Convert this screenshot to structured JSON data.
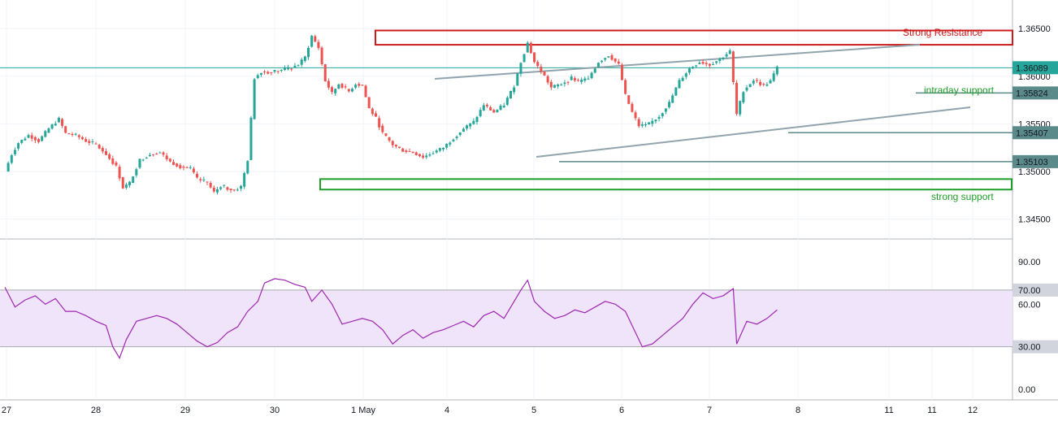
{
  "chart_data": [
    {
      "type": "candlestick",
      "y_ticks": [
        "1.36500",
        "1.36000",
        "1.35500",
        "1.35000",
        "1.34500"
      ],
      "ylim": [
        1.343,
        1.368
      ],
      "last_price": "1.36089",
      "level_labels": [
        "1.35824",
        "1.35407",
        "1.35103"
      ],
      "annotations": {
        "resistance": "Strong Resistance",
        "intraday": "intraday support",
        "support": "strong support"
      },
      "zones": {
        "resistance": [
          1.3633,
          1.3648
        ],
        "support": [
          1.3481,
          1.3492
        ]
      },
      "path_points": [
        [
          0,
          1.35
        ],
        [
          2,
          1.3518
        ],
        [
          4,
          1.353
        ],
        [
          7,
          1.3538
        ],
        [
          10,
          1.3532
        ],
        [
          13,
          1.3545
        ],
        [
          16,
          1.3555
        ],
        [
          18,
          1.354
        ],
        [
          21,
          1.3538
        ],
        [
          24,
          1.3532
        ],
        [
          27,
          1.3528
        ],
        [
          30,
          1.3518
        ],
        [
          33,
          1.3505
        ],
        [
          35,
          1.3483
        ],
        [
          37,
          1.3488
        ],
        [
          40,
          1.3512
        ],
        [
          43,
          1.3518
        ],
        [
          46,
          1.352
        ],
        [
          49,
          1.351
        ],
        [
          52,
          1.3505
        ],
        [
          55,
          1.3503
        ],
        [
          57,
          1.3492
        ],
        [
          60,
          1.3488
        ],
        [
          62,
          1.3478
        ],
        [
          64,
          1.3485
        ],
        [
          66,
          1.3482
        ],
        [
          68,
          1.348
        ],
        [
          70,
          1.3484
        ],
        [
          72,
          1.3512
        ],
        [
          74,
          1.3598
        ],
        [
          76,
          1.3605
        ],
        [
          78,
          1.3604
        ],
        [
          81,
          1.3606
        ],
        [
          84,
          1.3608
        ],
        [
          87,
          1.3612
        ],
        [
          89,
          1.362
        ],
        [
          91,
          1.3642
        ],
        [
          93,
          1.363
        ],
        [
          95,
          1.3595
        ],
        [
          97,
          1.3582
        ],
        [
          99,
          1.3592
        ],
        [
          102,
          1.3584
        ],
        [
          104,
          1.3592
        ],
        [
          106,
          1.359
        ],
        [
          108,
          1.3566
        ],
        [
          110,
          1.3556
        ],
        [
          112,
          1.354
        ],
        [
          115,
          1.3528
        ],
        [
          118,
          1.3522
        ],
        [
          121,
          1.352
        ],
        [
          124,
          1.3515
        ],
        [
          127,
          1.352
        ],
        [
          130,
          1.3525
        ],
        [
          133,
          1.3535
        ],
        [
          136,
          1.3545
        ],
        [
          139,
          1.3552
        ],
        [
          142,
          1.357
        ],
        [
          145,
          1.3562
        ],
        [
          148,
          1.357
        ],
        [
          151,
          1.359
        ],
        [
          153,
          1.3615
        ],
        [
          155,
          1.3635
        ],
        [
          157,
          1.3615
        ],
        [
          160,
          1.36
        ],
        [
          162,
          1.3588
        ],
        [
          165,
          1.3592
        ],
        [
          168,
          1.3598
        ],
        [
          170,
          1.3594
        ],
        [
          173,
          1.3598
        ],
        [
          176,
          1.3615
        ],
        [
          179,
          1.3622
        ],
        [
          182,
          1.3612
        ],
        [
          184,
          1.358
        ],
        [
          186,
          1.3562
        ],
        [
          188,
          1.3548
        ],
        [
          191,
          1.355
        ],
        [
          194,
          1.3558
        ],
        [
          197,
          1.3572
        ],
        [
          200,
          1.3595
        ],
        [
          203,
          1.3608
        ],
        [
          206,
          1.3615
        ],
        [
          209,
          1.3612
        ],
        [
          212,
          1.3618
        ],
        [
          215,
          1.3626
        ],
        [
          217,
          1.356
        ],
        [
          219,
          1.3585
        ],
        [
          222,
          1.3596
        ],
        [
          225,
          1.359
        ],
        [
          227,
          1.3595
        ],
        [
          229,
          1.3609
        ]
      ],
      "rsi": {
        "y_ticks": [
          "90.00",
          "70.00",
          "60.00",
          "30.00",
          "0.00"
        ],
        "ylim": [
          0,
          100
        ],
        "band": [
          30,
          70
        ],
        "points": [
          [
            0,
            72
          ],
          [
            3,
            58
          ],
          [
            6,
            63
          ],
          [
            9,
            66
          ],
          [
            12,
            60
          ],
          [
            15,
            64
          ],
          [
            18,
            55
          ],
          [
            21,
            55
          ],
          [
            24,
            52
          ],
          [
            27,
            48
          ],
          [
            30,
            45
          ],
          [
            32,
            30
          ],
          [
            34,
            22
          ],
          [
            36,
            35
          ],
          [
            39,
            48
          ],
          [
            42,
            50
          ],
          [
            45,
            52
          ],
          [
            48,
            50
          ],
          [
            51,
            46
          ],
          [
            54,
            40
          ],
          [
            57,
            34
          ],
          [
            60,
            30
          ],
          [
            63,
            33
          ],
          [
            66,
            40
          ],
          [
            69,
            44
          ],
          [
            72,
            55
          ],
          [
            75,
            62
          ],
          [
            77,
            75
          ],
          [
            80,
            78
          ],
          [
            83,
            77
          ],
          [
            86,
            74
          ],
          [
            89,
            72
          ],
          [
            91,
            62
          ],
          [
            94,
            70
          ],
          [
            97,
            60
          ],
          [
            100,
            46
          ],
          [
            103,
            48
          ],
          [
            106,
            50
          ],
          [
            109,
            48
          ],
          [
            112,
            42
          ],
          [
            115,
            32
          ],
          [
            118,
            38
          ],
          [
            121,
            42
          ],
          [
            124,
            36
          ],
          [
            127,
            40
          ],
          [
            130,
            42
          ],
          [
            133,
            45
          ],
          [
            136,
            48
          ],
          [
            139,
            44
          ],
          [
            142,
            52
          ],
          [
            145,
            55
          ],
          [
            148,
            50
          ],
          [
            151,
            62
          ],
          [
            153,
            70
          ],
          [
            155,
            77
          ],
          [
            157,
            62
          ],
          [
            160,
            55
          ],
          [
            163,
            50
          ],
          [
            166,
            52
          ],
          [
            169,
            56
          ],
          [
            172,
            54
          ],
          [
            175,
            58
          ],
          [
            178,
            62
          ],
          [
            181,
            60
          ],
          [
            184,
            55
          ],
          [
            186,
            45
          ],
          [
            189,
            30
          ],
          [
            192,
            32
          ],
          [
            195,
            38
          ],
          [
            198,
            44
          ],
          [
            201,
            50
          ],
          [
            204,
            60
          ],
          [
            207,
            68
          ],
          [
            210,
            64
          ],
          [
            213,
            66
          ],
          [
            216,
            71
          ],
          [
            217,
            32
          ],
          [
            220,
            48
          ],
          [
            223,
            46
          ],
          [
            226,
            50
          ],
          [
            229,
            56
          ]
        ]
      },
      "time_labels": [
        "27",
        "28",
        "29",
        "30",
        "1 May",
        "4",
        "5",
        "6",
        "7",
        "8",
        "11",
        "11",
        "12"
      ],
      "colors": {
        "up": "#26a69a",
        "down": "#ef5350",
        "resistance": "#cc1c1c",
        "support": "#1f9d29",
        "trend": "#90a4ae",
        "level": "#5b8a8a",
        "rsi": "#9c27b0",
        "rsi_band": "#f0e4fa"
      }
    }
  ]
}
